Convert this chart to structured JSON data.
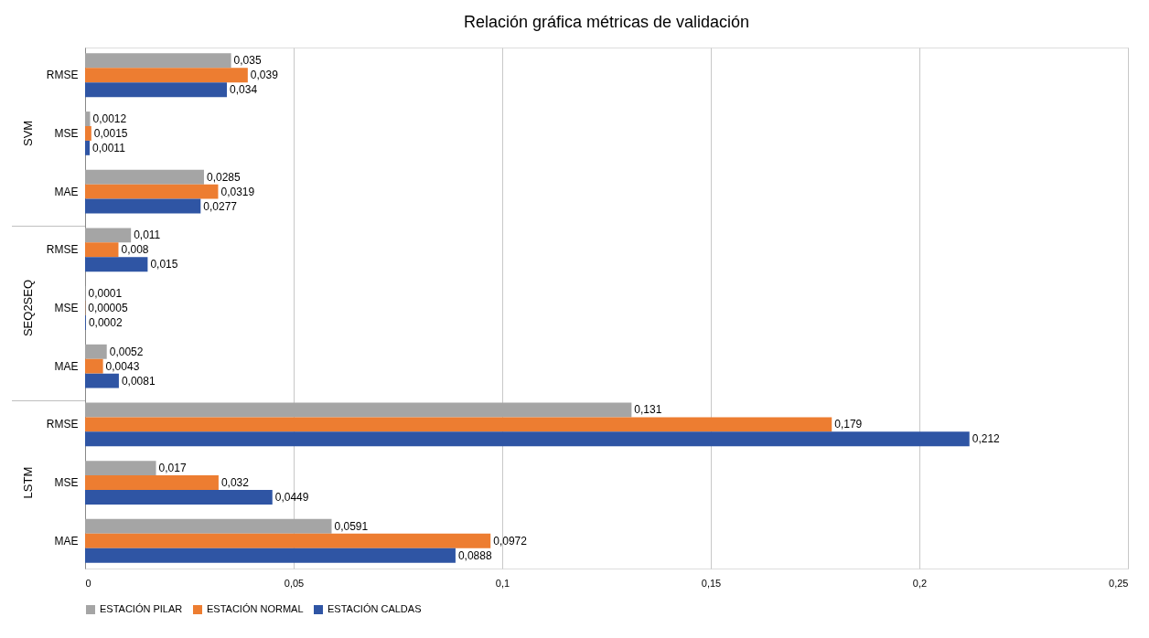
{
  "chart_data": {
    "type": "bar",
    "orientation": "horizontal",
    "title": "Relación gráfica métricas de validación",
    "categories": [
      "RMSE",
      "MSE",
      "MAE",
      "RMSE",
      "MSE",
      "MAE",
      "RMSE",
      "MSE",
      "MAE"
    ],
    "annotations": [
      "SVM",
      "SEQ2SEQ",
      "LSTM"
    ],
    "series": [
      {
        "name": "ESTACIÓN PILAR",
        "color": "#a5a5a5",
        "values": [
          0.035,
          0.0012,
          0.0285,
          0.011,
          0.0001,
          0.0052,
          0.131,
          0.017,
          0.0591
        ],
        "value_labels": [
          "0,035",
          "0,0012",
          "0,0285",
          "0,011",
          "0,0001",
          "0,0052",
          "0,131",
          "0,017",
          "0,0591"
        ]
      },
      {
        "name": "ESTACIÓN NORMAL",
        "color": "#ed7d31",
        "values": [
          0.039,
          0.0015,
          0.0319,
          0.008,
          5e-05,
          0.0043,
          0.179,
          0.032,
          0.0972
        ],
        "value_labels": [
          "0,039",
          "0,0015",
          "0,0319",
          "0,008",
          "0,00005",
          "0,0043",
          "0,179",
          "0,032",
          "0,0972"
        ]
      },
      {
        "name": "ESTACIÓN CALDAS",
        "color": "#2f55a4",
        "values": [
          0.034,
          0.0011,
          0.0277,
          0.015,
          0.0002,
          0.0081,
          0.212,
          0.0449,
          0.0888
        ],
        "value_labels": [
          "0,034",
          "0,0011",
          "0,0277",
          "0,015",
          "0,0002",
          "0,0081",
          "0,212",
          "0,0449",
          "0,0888"
        ]
      }
    ],
    "xlim": [
      0,
      0.25
    ],
    "xticks": [
      0,
      {
        "value": 0.05,
        "label": "0,05"
      },
      {
        "value": 0.1,
        "label": "0,1"
      },
      {
        "value": 0.15,
        "label": "0,15"
      },
      {
        "value": 0.2,
        "label": "0,2"
      },
      {
        "value": 0.25,
        "label": "0,25"
      }
    ],
    "grid": "x",
    "legend": "bottom"
  }
}
